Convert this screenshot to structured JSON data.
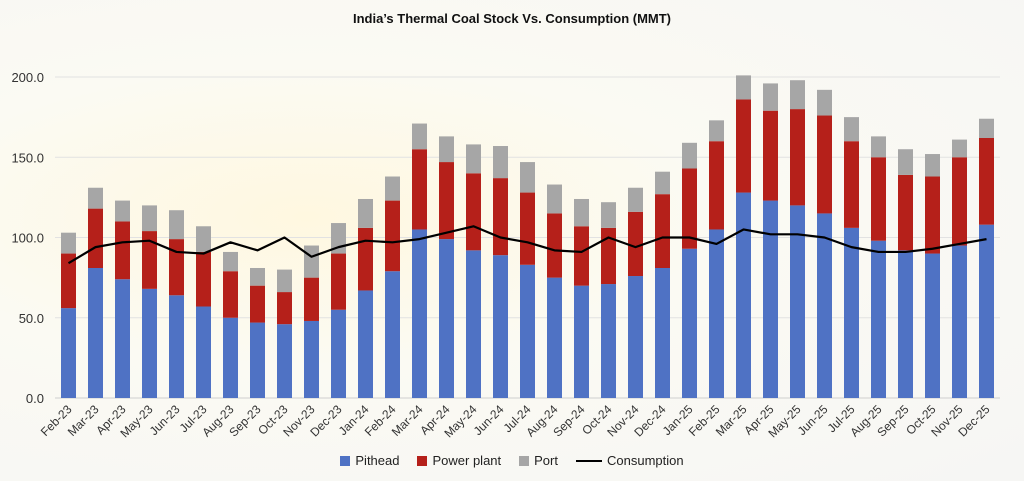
{
  "chart_data": {
    "type": "bar",
    "stacked": true,
    "title": "India’s Thermal Coal Stock Vs. Consumption (MMT)",
    "xlabel": "",
    "ylabel": "",
    "ylim": [
      0,
      200
    ],
    "yticks": [
      "0.0",
      "50.0",
      "100.0",
      "150.0",
      "200.0"
    ],
    "grid": true,
    "legend_position": "bottom",
    "categories": [
      "Feb-23",
      "Mar-23",
      "Apr-23",
      "May-23",
      "Jun-23",
      "Jul-23",
      "Aug-23",
      "Sep-23",
      "Oct-23",
      "Nov-23",
      "Dec-23",
      "Jan-24",
      "Feb-24",
      "Mar-24",
      "Apr-24",
      "May-24",
      "Jun-24",
      "Jul-24",
      "Aug-24",
      "Sep-24",
      "Oct-24",
      "Nov-24",
      "Dec-24",
      "Jan-25",
      "Feb-25",
      "Mar-25",
      "Apr-25",
      "May-25",
      "Jun-25",
      "Jul-25",
      "Aug-25",
      "Sep-25",
      "Oct-25",
      "Nov-25",
      "Dec-25"
    ],
    "series": [
      {
        "name": "Pithead",
        "kind": "bar",
        "color": "#4f72c4",
        "values": [
          56,
          81,
          74,
          68,
          64,
          57,
          50,
          47,
          46,
          48,
          55,
          67,
          79,
          105,
          99,
          92,
          89,
          83,
          75,
          70,
          71,
          76,
          81,
          93,
          105,
          128,
          123,
          120,
          115,
          106,
          98,
          92,
          90,
          95,
          108
        ]
      },
      {
        "name": "Power plant",
        "kind": "bar",
        "color": "#b5201a",
        "values": [
          34,
          37,
          36,
          36,
          35,
          34,
          29,
          23,
          20,
          27,
          35,
          39,
          44,
          50,
          48,
          48,
          48,
          45,
          40,
          37,
          35,
          40,
          46,
          50,
          55,
          58,
          56,
          60,
          61,
          54,
          52,
          47,
          48,
          55,
          54
        ]
      },
      {
        "name": "Port",
        "kind": "bar",
        "color": "#a6a6a6",
        "values": [
          13,
          13,
          13,
          16,
          18,
          16,
          12,
          11,
          14,
          20,
          19,
          18,
          15,
          16,
          16,
          18,
          20,
          19,
          18,
          17,
          16,
          15,
          14,
          16,
          13,
          15,
          17,
          18,
          16,
          15,
          13,
          16,
          14,
          11,
          12
        ]
      },
      {
        "name": "Consumption",
        "kind": "line",
        "color": "#000000",
        "values": [
          84,
          94,
          97,
          98,
          91,
          90,
          97,
          92,
          100,
          88,
          94,
          98,
          97,
          99,
          103,
          107,
          100,
          97,
          92,
          91,
          100,
          94,
          100,
          100,
          96,
          105,
          102,
          102,
          100,
          94,
          91,
          91,
          93,
          96,
          99
        ]
      }
    ]
  }
}
